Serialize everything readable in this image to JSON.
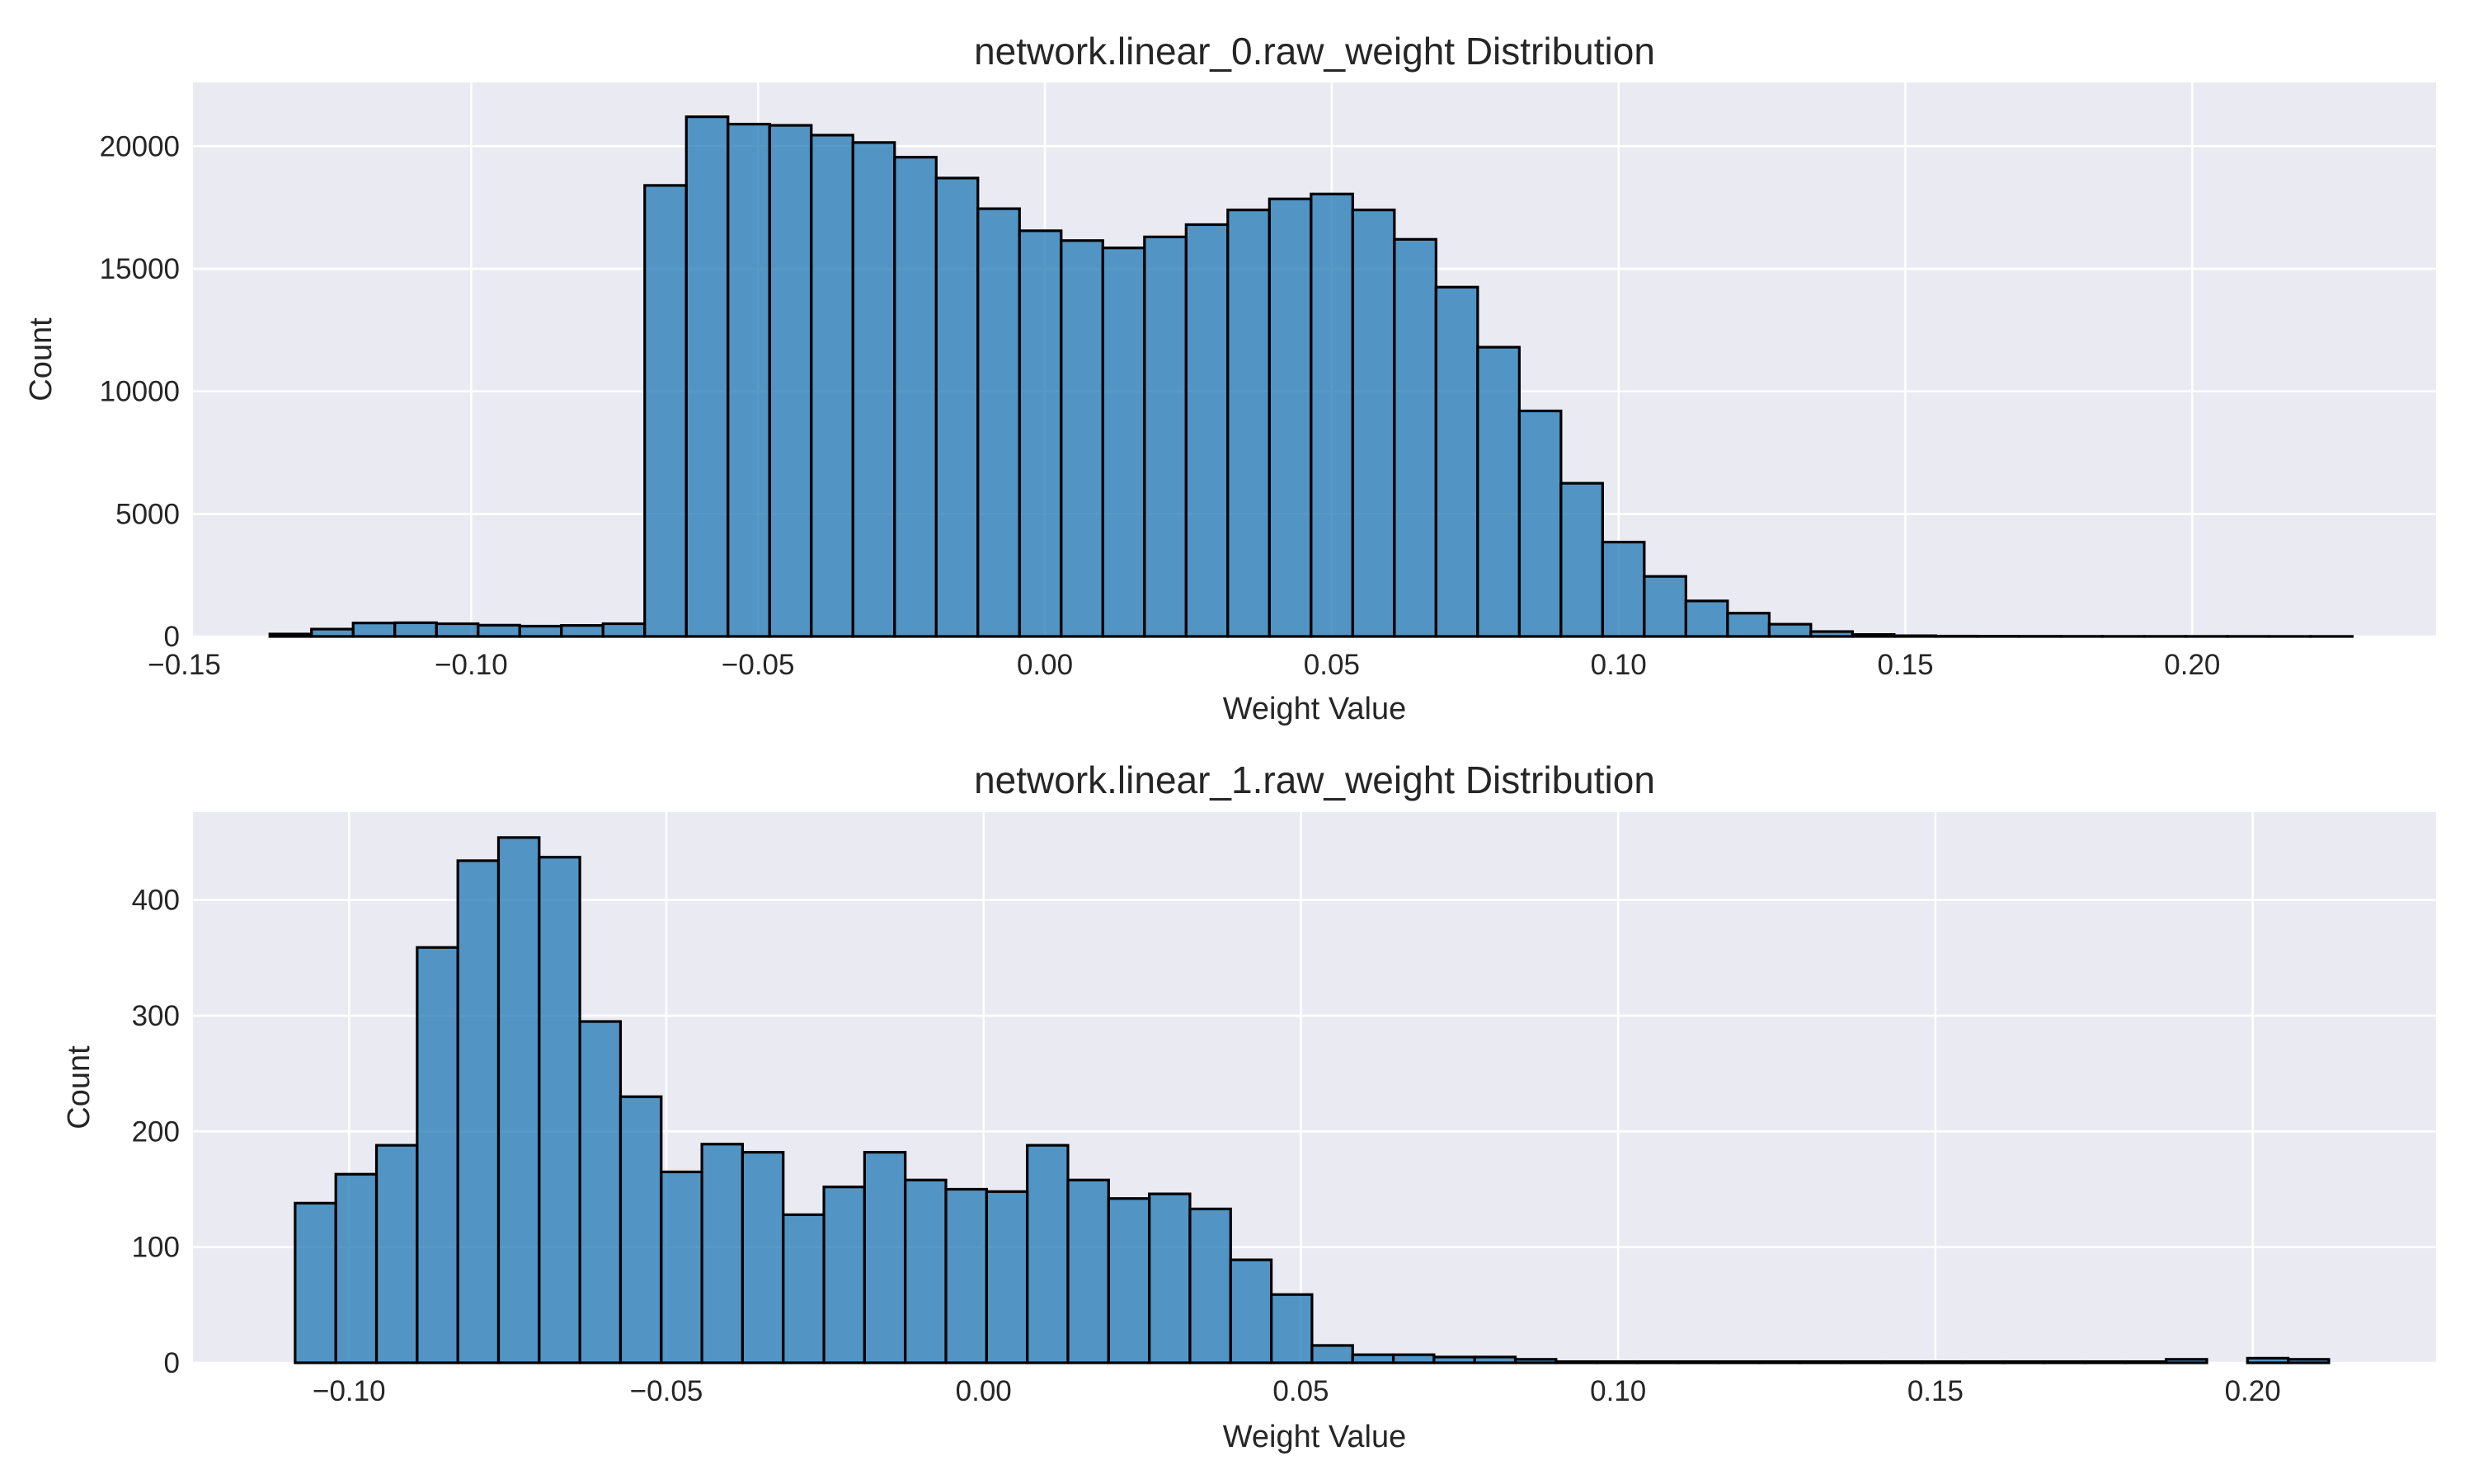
{
  "chart_data": [
    {
      "type": "bar",
      "title": "network.linear_0.raw_weight Distribution",
      "xlabel": "Weight Value",
      "ylabel": "Count",
      "xlim": [
        -0.1485,
        0.2425
      ],
      "ylim": [
        0,
        22600
      ],
      "x_ticks": [
        -0.15,
        -0.1,
        -0.05,
        0.0,
        0.05,
        0.1,
        0.15,
        0.2
      ],
      "x_tick_labels": [
        "−0.15",
        "−0.10",
        "−0.05",
        "0.00",
        "0.05",
        "0.10",
        "0.15",
        "0.20"
      ],
      "y_ticks": [
        0,
        5000,
        10000,
        15000,
        20000
      ],
      "y_tick_labels": [
        "0",
        "5000",
        "10000",
        "15000",
        "20000"
      ],
      "grid": true,
      "color": "#1f77b4",
      "bin_start": -0.1351,
      "bin_width": 0.00726,
      "values": [
        100,
        300,
        550,
        560,
        520,
        460,
        420,
        450,
        520,
        18400,
        21200,
        20900,
        20850,
        20450,
        20150,
        19550,
        18700,
        17450,
        16550,
        16150,
        15850,
        16300,
        16800,
        17400,
        17850,
        18050,
        17400,
        16200,
        14250,
        11800,
        9200,
        6250,
        3850,
        2450,
        1450,
        950,
        500,
        200,
        80,
        30,
        15,
        10,
        8,
        6,
        5,
        5,
        4,
        4,
        3,
        3
      ]
    },
    {
      "type": "bar",
      "title": "network.linear_1.raw_weight Distribution",
      "xlabel": "Weight Value",
      "ylabel": "Count",
      "xlim": [
        -0.1246,
        0.2289
      ],
      "ylim": [
        0,
        476
      ],
      "x_ticks": [
        -0.1,
        -0.05,
        0.0,
        0.05,
        0.1,
        0.15,
        0.2
      ],
      "x_tick_labels": [
        "−0.10",
        "−0.05",
        "0.00",
        "0.05",
        "0.10",
        "0.15",
        "0.20"
      ],
      "y_ticks": [
        0,
        100,
        200,
        300,
        400
      ],
      "y_tick_labels": [
        "0",
        "100",
        "200",
        "300",
        "400"
      ],
      "grid": true,
      "color": "#1f77b4",
      "bin_start": -0.1085,
      "bin_width": 0.00641,
      "values": [
        138,
        163,
        188,
        359,
        434,
        454,
        437,
        295,
        230,
        165,
        189,
        182,
        128,
        152,
        182,
        158,
        150,
        148,
        188,
        158,
        142,
        146,
        133,
        89,
        59,
        15,
        7,
        7,
        5,
        5,
        3,
        1,
        1,
        1,
        1,
        1,
        1,
        1,
        1,
        1,
        1,
        1,
        1,
        1,
        1,
        1,
        3,
        0,
        4,
        3
      ]
    }
  ]
}
